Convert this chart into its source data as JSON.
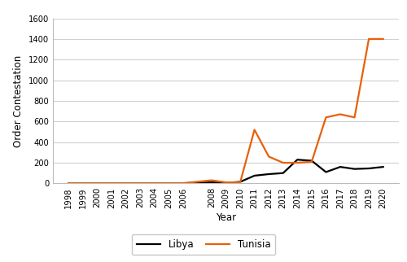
{
  "years": [
    1998,
    1999,
    2000,
    2001,
    2002,
    2003,
    2004,
    2005,
    2006,
    2008,
    2009,
    2010,
    2011,
    2012,
    2013,
    2014,
    2015,
    2016,
    2017,
    2018,
    2019,
    2020
  ],
  "libya": [
    2,
    2,
    2,
    2,
    2,
    2,
    2,
    2,
    2,
    10,
    5,
    15,
    75,
    90,
    100,
    230,
    220,
    110,
    160,
    140,
    145,
    160
  ],
  "tunisia": [
    2,
    2,
    2,
    2,
    2,
    2,
    2,
    2,
    2,
    30,
    10,
    10,
    520,
    260,
    200,
    200,
    210,
    640,
    670,
    640,
    1400,
    1400
  ],
  "libya_color": "#000000",
  "tunisia_color": "#E8600A",
  "ylabel": "Order Contestation",
  "xlabel": "Year",
  "ylim": [
    0,
    1600
  ],
  "yticks": [
    0,
    200,
    400,
    600,
    800,
    1000,
    1200,
    1400,
    1600
  ],
  "legend_labels": [
    "Libya",
    "Tunisia"
  ],
  "background_color": "#ffffff",
  "grid_color": "#d0d0d0",
  "linewidth": 1.6,
  "tick_fontsize": 7.2,
  "label_fontsize": 8.5,
  "legend_fontsize": 8.5
}
